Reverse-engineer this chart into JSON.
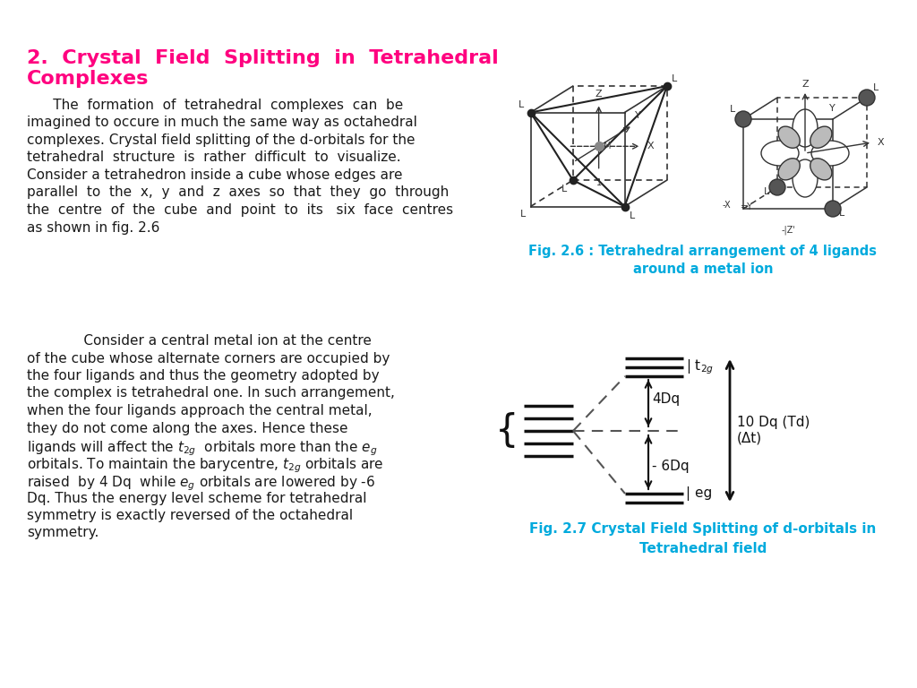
{
  "title_line1": "2.  Crystal  Field  Splitting  in  Tetrahedral",
  "title_line2": "Complexes",
  "title_color": "#FF007F",
  "title_fontsize": 16,
  "body_color": "#1a1a1a",
  "bg_color": "#ffffff",
  "fig26_caption_line1": "Fig. 2.6 : Tetrahedral arrangement of 4 ligands",
  "fig26_caption_line2": "around a metal ion",
  "fig26_caption_color": "#00AADD",
  "fig27_caption_line1": "Fig. 2.7 Crystal Field Splitting of d-orbitals in",
  "fig27_caption_line2": "Tetrahedral field",
  "fig27_caption_color": "#00AADD",
  "para1_lines": [
    "      The  formation  of  tetrahedral  complexes  can  be",
    "imagined to occure in much the same way as octahedral",
    "complexes. Crystal field splitting of the d-orbitals for the",
    "tetrahedral  structure  is  rather  difficult  to  visualize.",
    "Consider a tetrahedron inside a cube whose edges are",
    "parallel  to  the  x,  y  and  z  axes  so  that  they  go  through",
    "the  centre  of  the  cube  and  point  to  its   six  face  centres",
    "as shown in fig. 2.6"
  ],
  "para2_lines": [
    "             Consider a central metal ion at the centre",
    "of the cube whose alternate corners are occupied by",
    "the four ligands and thus the geometry adopted by",
    "the complex is tetrahedral one. In such arrangement,",
    "when the four ligands approach the central metal,",
    "they do not come along the axes. Hence these",
    "ligands will affect the t___2g___  orbitals more than the e___g___",
    "orbitals. To maintain the barycentre, t___2g___ orbitals are",
    "raised  by 4 Dq  while e___g___ orbitals are lowered by -6",
    "Dq. Thus the energy level scheme for tetrahedral",
    "symmetry is exactly reversed of the octahedral",
    "symmetry."
  ]
}
